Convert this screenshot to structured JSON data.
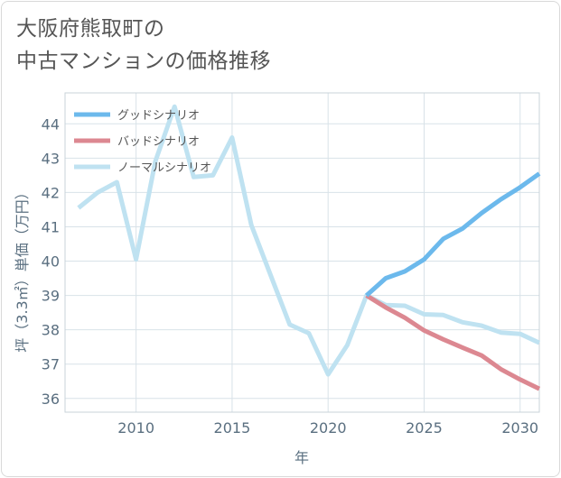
{
  "title": {
    "line1": "大阪府熊取町の",
    "line2": "中古マンションの価格推移"
  },
  "chart_data": {
    "type": "line",
    "title": "大阪府熊取町の中古マンションの価格推移",
    "xlabel": "年",
    "ylabel": "坪（3.3㎡）単価（万円）",
    "xlim": [
      2006.3,
      2031
    ],
    "ylim": [
      35.6,
      44.9
    ],
    "xticks": [
      2010,
      2015,
      2020,
      2025,
      2030
    ],
    "yticks": [
      36,
      37,
      38,
      39,
      40,
      41,
      42,
      43,
      44
    ],
    "grid": true,
    "legend_position": "top-left",
    "series": [
      {
        "name": "グッドシナリオ",
        "color": "#6cb9ec",
        "x": [
          2022,
          2023,
          2024,
          2025,
          2026,
          2027,
          2028,
          2029,
          2030,
          2031
        ],
        "y": [
          39.0,
          39.5,
          39.7,
          40.05,
          40.65,
          40.95,
          41.4,
          41.8,
          42.15,
          42.55
        ]
      },
      {
        "name": "バッドシナリオ",
        "color": "#dc8891",
        "x": [
          2022,
          2023,
          2024,
          2025,
          2026,
          2027,
          2028,
          2029,
          2030,
          2031
        ],
        "y": [
          39.0,
          38.65,
          38.35,
          37.98,
          37.72,
          37.48,
          37.25,
          36.85,
          36.55,
          36.28
        ]
      },
      {
        "name": "ノーマルシナリオ",
        "color": "#bfe2f1",
        "x": [
          2007,
          2008,
          2009,
          2010,
          2011,
          2012,
          2013,
          2014,
          2015,
          2016,
          2017,
          2018,
          2019,
          2020,
          2021,
          2022,
          2023,
          2024,
          2025,
          2026,
          2027,
          2028,
          2029,
          2030,
          2031
        ],
        "y": [
          41.55,
          42.0,
          42.3,
          40.05,
          42.9,
          44.5,
          42.45,
          42.5,
          43.6,
          41.05,
          39.6,
          38.15,
          37.9,
          36.7,
          37.55,
          39.0,
          38.72,
          38.7,
          38.45,
          38.43,
          38.22,
          38.12,
          37.92,
          37.88,
          37.62
        ]
      }
    ]
  }
}
